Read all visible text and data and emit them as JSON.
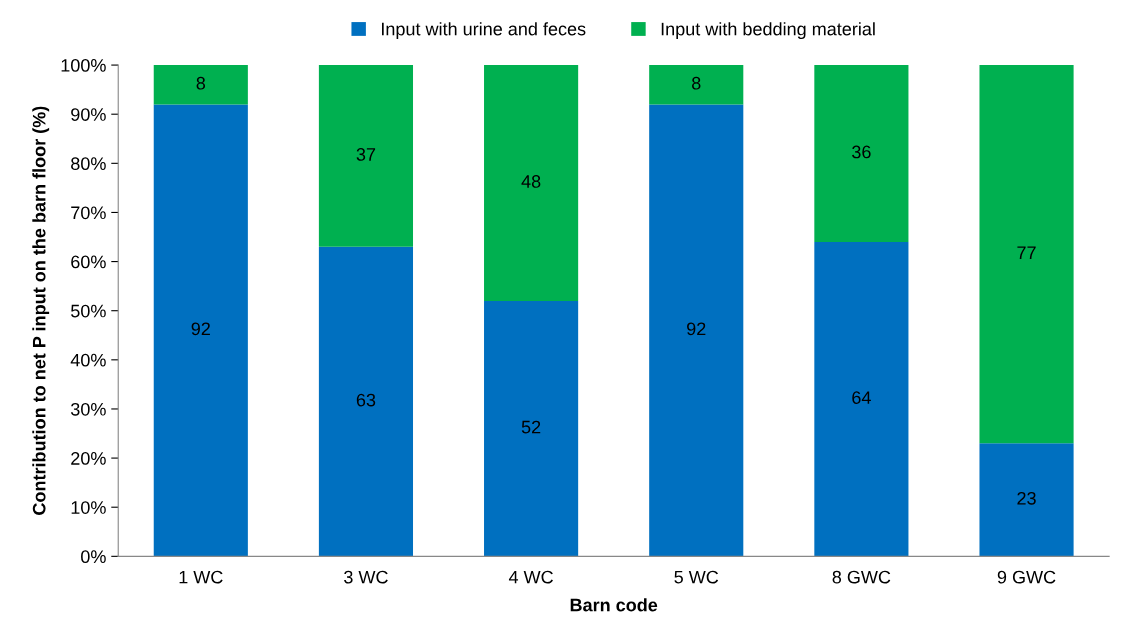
{
  "chart_data": {
    "type": "bar",
    "stacked": true,
    "xlabel": "Barn code",
    "ylabel": "Contribution to net P input on the barn floor (%)",
    "categories": [
      "1 WC",
      "3 WC",
      "4 WC",
      "5 WC",
      "8 GWC",
      "9 GWC"
    ],
    "series": [
      {
        "name": "Input with urine and feces",
        "color": "#0070c0",
        "values": [
          92,
          63,
          52,
          92,
          64,
          23
        ]
      },
      {
        "name": "Input with bedding material",
        "color": "#00b050",
        "values": [
          8,
          37,
          48,
          8,
          36,
          77
        ]
      }
    ],
    "ylim": [
      0,
      100
    ],
    "yticks": [
      {
        "value": 0,
        "label": "0%"
      },
      {
        "value": 10,
        "label": "10%"
      },
      {
        "value": 20,
        "label": "20%"
      },
      {
        "value": 30,
        "label": "30%"
      },
      {
        "value": 40,
        "label": "40%"
      },
      {
        "value": 50,
        "label": "50%"
      },
      {
        "value": 60,
        "label": "60%"
      },
      {
        "value": 70,
        "label": "70%"
      },
      {
        "value": 80,
        "label": "80%"
      },
      {
        "value": 90,
        "label": "90%"
      },
      {
        "value": 100,
        "label": "100%"
      }
    ],
    "data_labels": true,
    "legend": "top",
    "grid": false
  }
}
